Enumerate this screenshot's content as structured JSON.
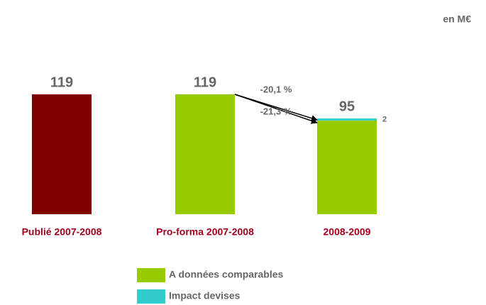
{
  "chart_data": {
    "type": "stacked_bar",
    "unit_label": "en M€",
    "categories": [
      "Publié 2007-2008",
      "Pro-forma 2007-2008",
      "2008-2009"
    ],
    "series": [
      {
        "name": "A données comparables",
        "color": "#99cc00",
        "colors": [
          "#800000",
          "#99cc00",
          "#99cc00"
        ],
        "values": [
          119,
          119,
          93
        ]
      },
      {
        "name": "Impact devises",
        "color": "#33cccc",
        "values": [
          null,
          null,
          2
        ]
      }
    ],
    "totals": [
      119,
      119,
      95
    ],
    "annotations": [
      "-20,1 %",
      "-21,3 %"
    ],
    "ylim": [
      0,
      119
    ]
  }
}
